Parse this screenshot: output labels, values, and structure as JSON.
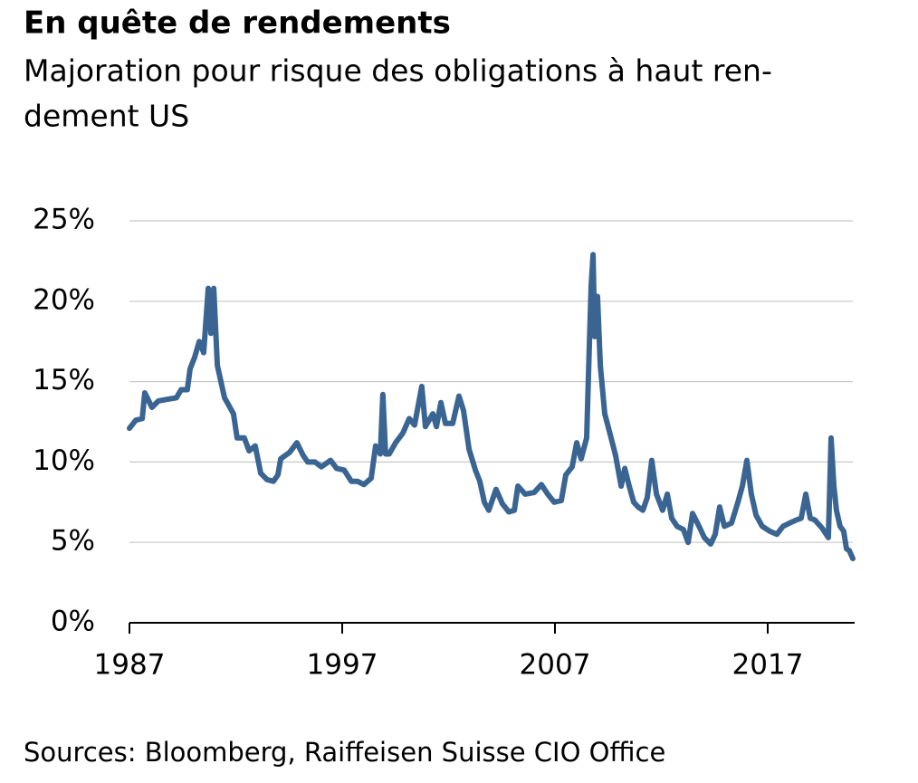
{
  "chart_data": {
    "type": "line",
    "title": "En quête de rendements",
    "subtitle": [
      "Majoration pour risque des obligations à haut ren-",
      "dement US"
    ],
    "source": "Sources: Bloomberg, Raiffeisen Suisse CIO Office",
    "color": "#3a6592",
    "xlim": [
      1987,
      2021
    ],
    "xticks": [
      1987,
      1997,
      2007,
      2017
    ],
    "ylim": [
      0,
      25
    ],
    "yticks": [
      {
        "value": 0,
        "label": "0%"
      },
      {
        "value": 5,
        "label": "5%"
      },
      {
        "value": 10,
        "label": "10%"
      },
      {
        "value": 15,
        "label": "15%"
      },
      {
        "value": 20,
        "label": "20%"
      },
      {
        "value": 25,
        "label": "25%"
      }
    ],
    "grid": true,
    "x": [
      1987.0,
      1987.3,
      1987.6,
      1987.72,
      1988.06,
      1988.36,
      1988.79,
      1989.21,
      1989.43,
      1989.72,
      1989.85,
      1990.06,
      1990.28,
      1990.49,
      1990.7,
      1990.83,
      1990.96,
      1991.13,
      1991.47,
      1991.89,
      1992.06,
      1992.4,
      1992.62,
      1992.91,
      1993.17,
      1993.47,
      1993.77,
      1993.98,
      1994.11,
      1994.53,
      1994.87,
      1995.17,
      1995.38,
      1995.72,
      1996.02,
      1996.45,
      1996.74,
      1997.09,
      1997.43,
      1997.72,
      1998.02,
      1998.36,
      1998.57,
      1998.79,
      1998.91,
      1999.04,
      1999.21,
      1999.51,
      1999.85,
      2000.15,
      2000.4,
      2000.74,
      2000.91,
      2001.26,
      2001.43,
      2001.64,
      2001.85,
      2002.19,
      2002.49,
      2002.7,
      2002.96,
      2003.26,
      2003.47,
      2003.68,
      2003.89,
      2004.23,
      2004.53,
      2004.83,
      2005.09,
      2005.26,
      2005.6,
      2006.02,
      2006.36,
      2006.66,
      2006.96,
      2007.3,
      2007.51,
      2007.81,
      2008.02,
      2008.23,
      2008.49,
      2008.62,
      2008.7,
      2008.79,
      2008.87,
      2009.0,
      2009.13,
      2009.34,
      2009.64,
      2009.85,
      2010.11,
      2010.28,
      2010.49,
      2010.7,
      2010.91,
      2011.13,
      2011.34,
      2011.55,
      2011.77,
      2012.06,
      2012.28,
      2012.49,
      2012.74,
      2013.04,
      2013.26,
      2013.47,
      2013.77,
      2014.02,
      2014.32,
      2014.53,
      2014.74,
      2014.96,
      2015.3,
      2015.6,
      2015.81,
      2016.02,
      2016.23,
      2016.45,
      2016.74,
      2017.09,
      2017.43,
      2017.72,
      2018.02,
      2018.36,
      2018.57,
      2018.79,
      2019.0,
      2019.21,
      2019.55,
      2019.85,
      2019.98,
      2020.11,
      2020.23,
      2020.4,
      2020.57,
      2020.7,
      2020.83,
      2021.0
    ],
    "values": [
      12.1,
      12.6,
      12.7,
      14.3,
      13.4,
      13.8,
      13.9,
      14.0,
      14.5,
      14.5,
      15.8,
      16.5,
      17.5,
      16.8,
      20.8,
      18.0,
      20.8,
      16.0,
      14.0,
      13.0,
      11.5,
      11.5,
      10.7,
      11.0,
      9.3,
      8.9,
      8.8,
      9.2,
      10.2,
      10.6,
      11.2,
      10.4,
      10.0,
      10.0,
      9.7,
      10.1,
      9.6,
      9.5,
      8.8,
      8.8,
      8.6,
      9.0,
      11.0,
      10.5,
      14.2,
      10.5,
      10.5,
      11.2,
      11.8,
      12.7,
      12.3,
      14.7,
      12.2,
      13.0,
      12.2,
      13.7,
      12.4,
      12.4,
      14.1,
      13.2,
      10.8,
      9.5,
      8.8,
      7.5,
      7.0,
      8.3,
      7.4,
      6.9,
      7.0,
      8.5,
      8.0,
      8.1,
      8.6,
      8.0,
      7.5,
      7.6,
      9.2,
      9.7,
      11.2,
      10.2,
      11.5,
      17.5,
      21.0,
      22.9,
      17.8,
      20.3,
      16.0,
      13.0,
      11.5,
      10.4,
      8.5,
      9.6,
      8.5,
      7.5,
      7.2,
      7.0,
      7.8,
      10.1,
      8.0,
      7.0,
      8.0,
      6.5,
      6.0,
      5.8,
      5.0,
      6.8,
      6.0,
      5.3,
      4.9,
      5.5,
      7.2,
      6.0,
      6.2,
      7.5,
      8.5,
      10.1,
      8.0,
      6.7,
      6.0,
      5.7,
      5.5,
      6.0,
      6.2,
      6.4,
      6.5,
      8.0,
      6.5,
      6.4,
      5.9,
      5.3,
      11.5,
      8.5,
      7.0,
      6.0,
      5.7,
      4.6,
      4.5,
      4.0
    ]
  }
}
